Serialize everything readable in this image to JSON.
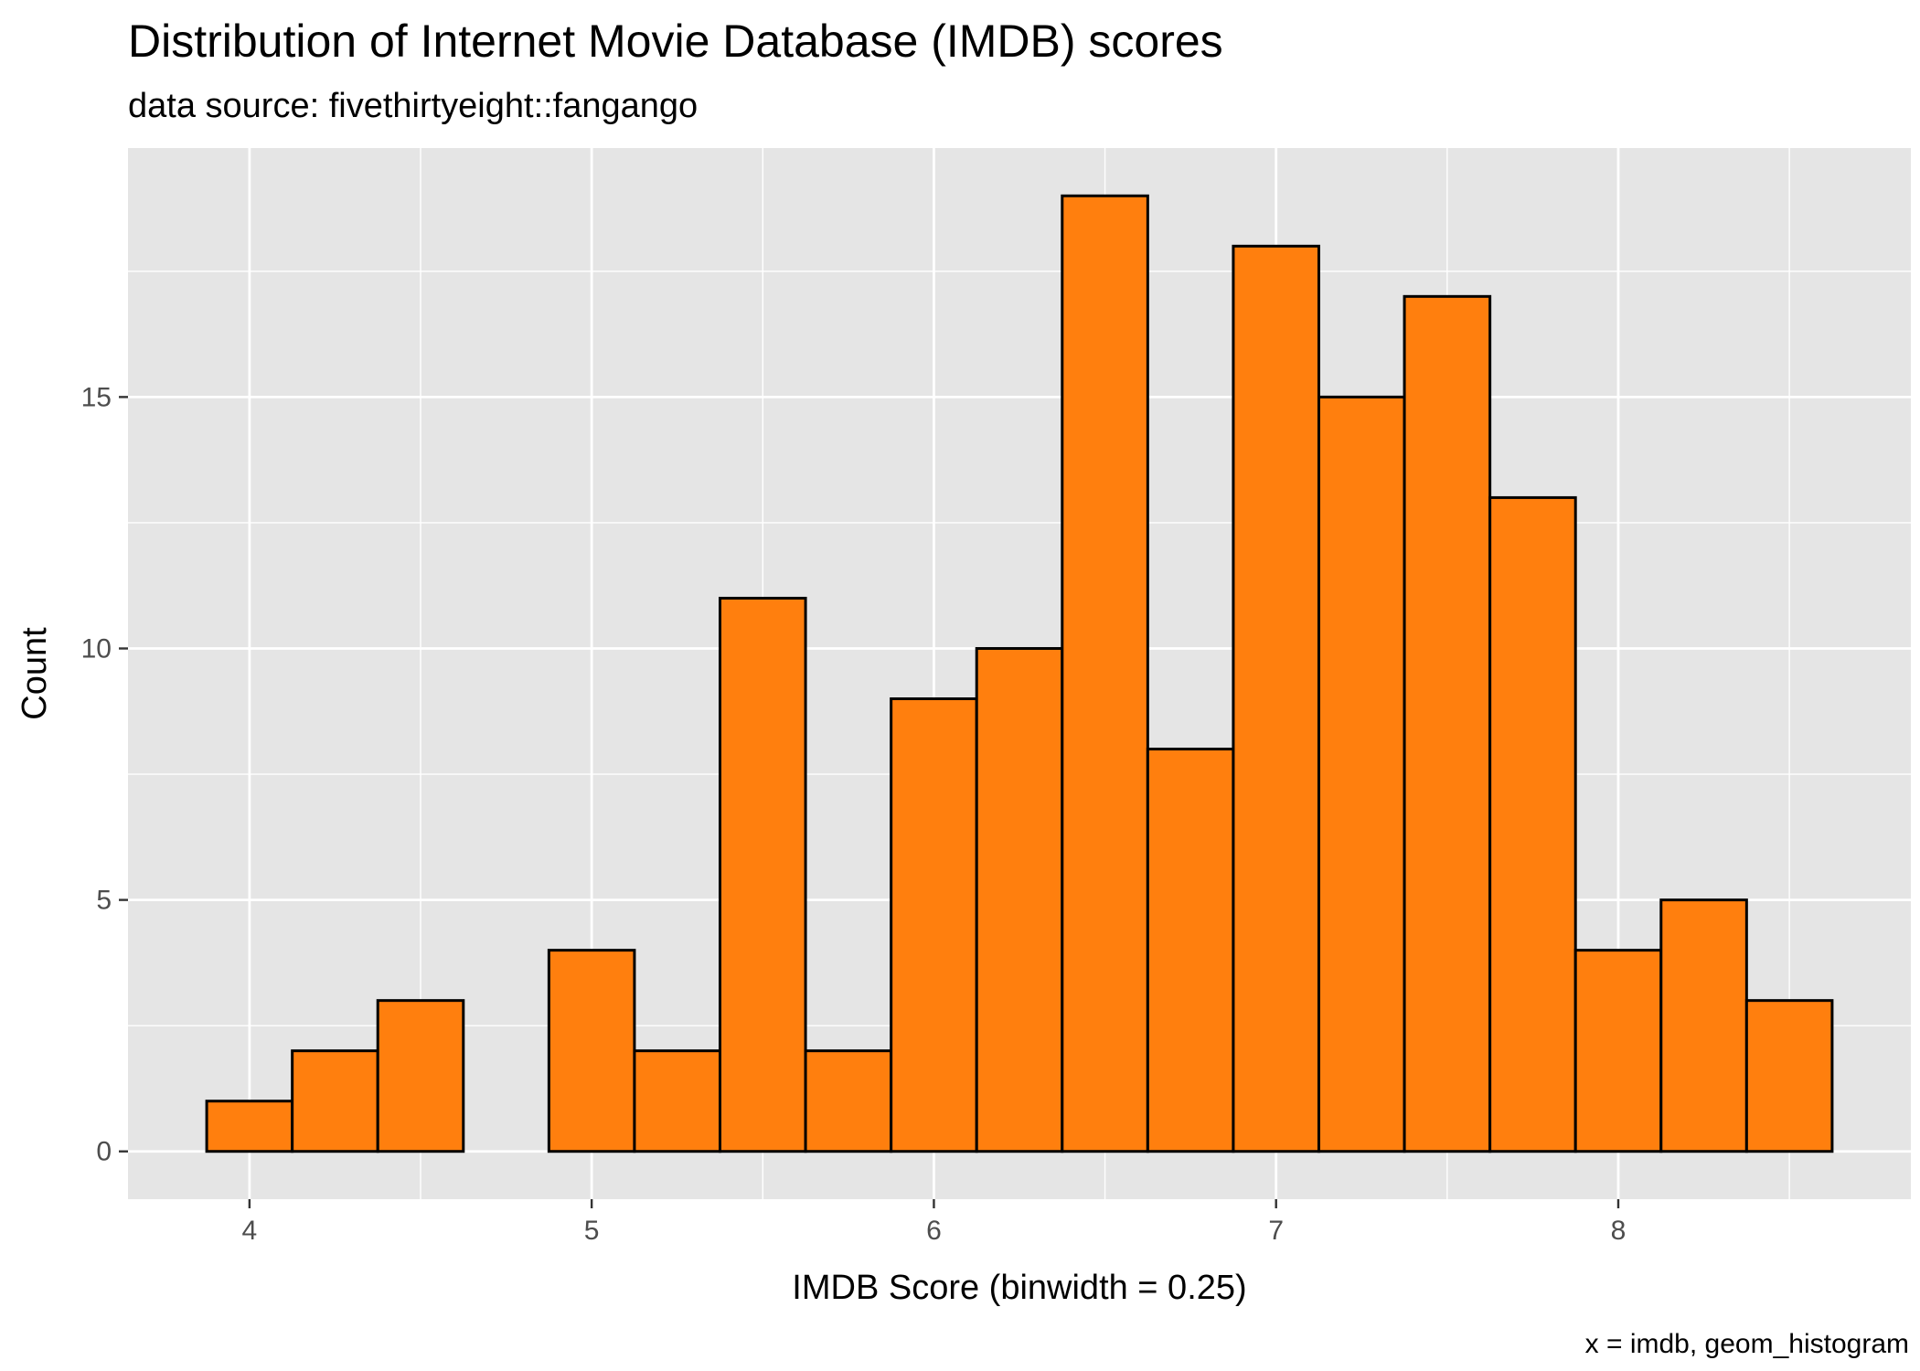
{
  "chart_data": {
    "type": "bar",
    "title": "Distribution of Internet Movie Database (IMDB) scores",
    "subtitle": "data source: fivethirtyeight::fangango",
    "xlabel": "IMDB Score (binwidth = 0.25)",
    "ylabel": "Count",
    "caption": "x = imdb, geom_histogram",
    "binwidth": 0.25,
    "bin_centers": [
      4.0,
      4.25,
      4.5,
      4.75,
      5.0,
      5.25,
      5.5,
      5.75,
      6.0,
      6.25,
      6.5,
      6.75,
      7.0,
      7.25,
      7.5,
      7.75,
      8.0,
      8.25,
      8.5
    ],
    "values": [
      1,
      2,
      3,
      0,
      4,
      2,
      11,
      2,
      9,
      10,
      19,
      8,
      18,
      15,
      17,
      13,
      4,
      5,
      3
    ],
    "xlim": [
      3.645,
      8.855
    ],
    "ylim": [
      -0.95,
      19.95
    ],
    "x_ticks": [
      4,
      5,
      6,
      7,
      8
    ],
    "x_tick_labels": [
      "4",
      "5",
      "6",
      "7",
      "8"
    ],
    "y_ticks": [
      0,
      5,
      10,
      15
    ],
    "y_tick_labels": [
      "0",
      "5",
      "10",
      "15"
    ],
    "grid": true,
    "colors": {
      "bar_fill": "#FF7F0E",
      "bar_outline": "#000000",
      "panel_background": "#E5E5E5",
      "grid_line": "#FFFFFF",
      "tick_text": "#4D4D4D"
    }
  }
}
